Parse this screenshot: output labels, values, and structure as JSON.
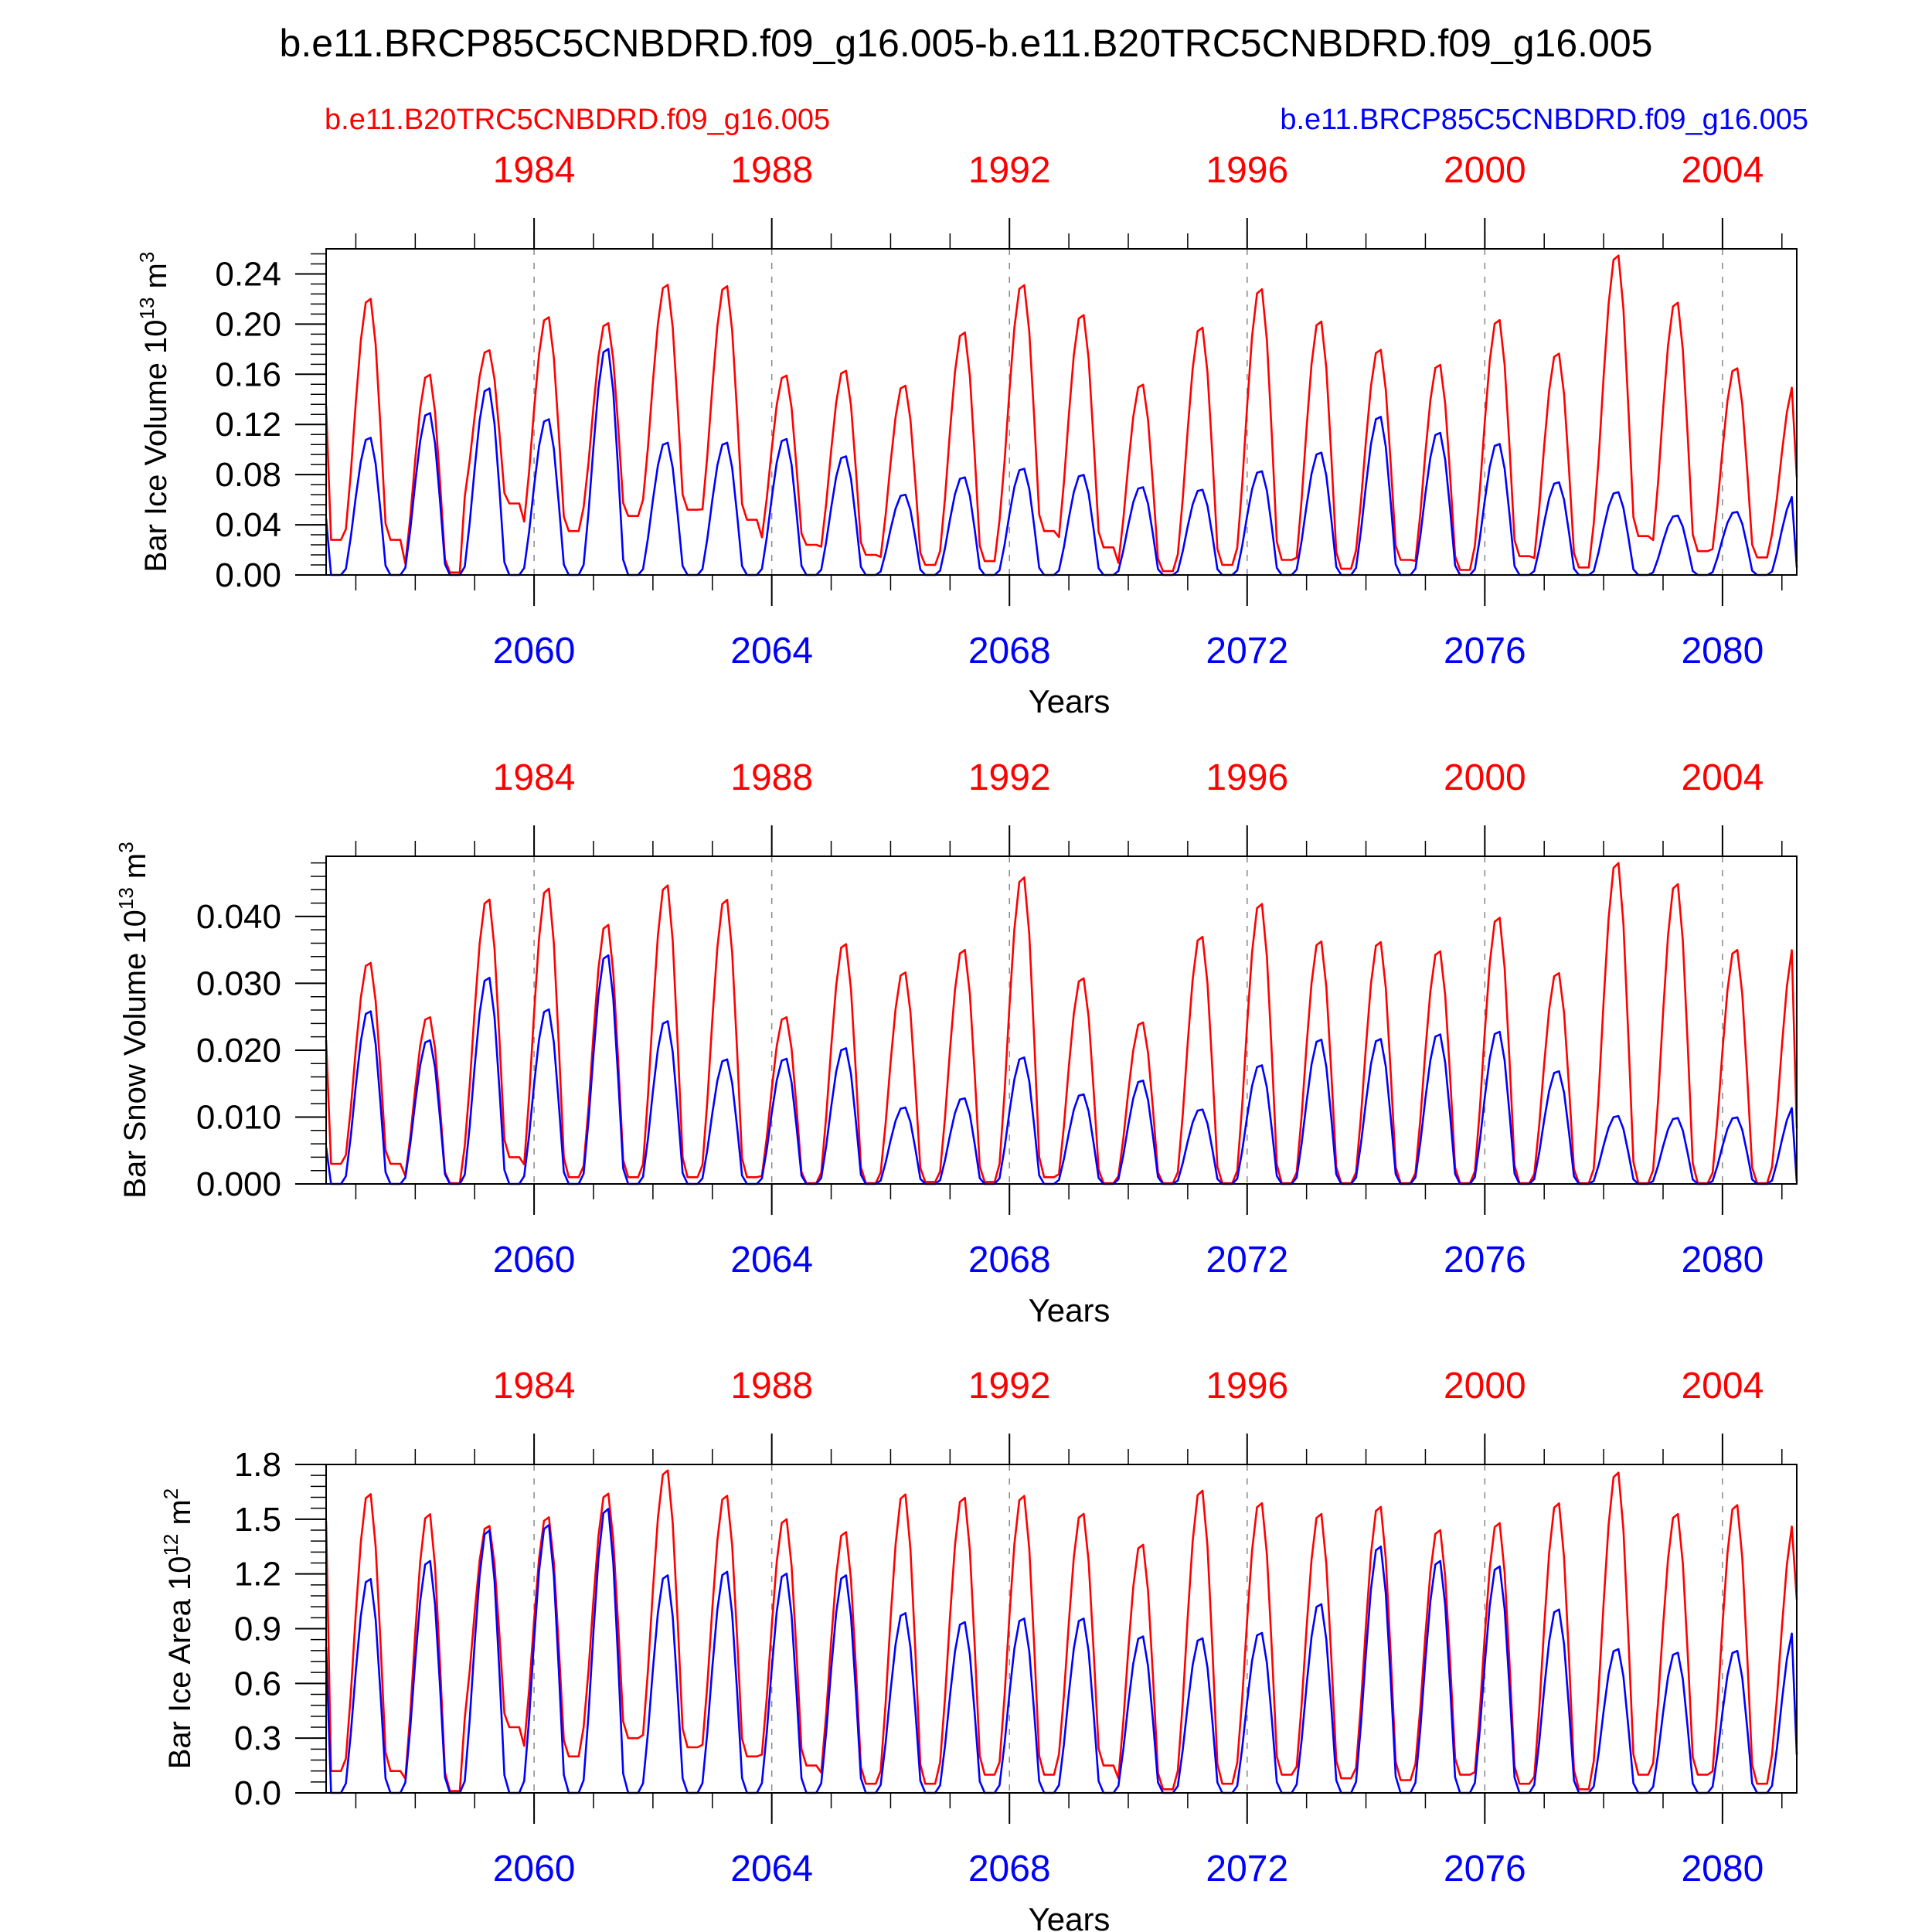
{
  "title": "b.e11.BRCP85C5CNBDRD.f09_g16.005-b.e11.B20TRC5CNBDRD.f09_g16.005",
  "legend": {
    "left": "b.e11.B20TRC5CNBDRD.f09_g16.005",
    "right": "b.e11.BRCP85C5CNBDRD.f09_g16.005",
    "left_color": "#ff0000",
    "right_color": "#0000ff"
  },
  "chart_data": [
    {
      "type": "line",
      "title": "",
      "ylabel": "Bar Ice Volume 10",
      "ylabel_exp": "13",
      "ylabel_unit": " m",
      "ylabel_unit_exp": "3",
      "xlabel": "Years",
      "top_axis_ticks": [
        "1984",
        "1988",
        "1992",
        "1996",
        "2000",
        "2004"
      ],
      "bottom_axis_ticks": [
        "2060",
        "2064",
        "2068",
        "2072",
        "2076",
        "2080"
      ],
      "ylim": [
        0,
        0.26
      ],
      "yticks": [
        0.0,
        0.04,
        0.08,
        0.12,
        0.16,
        0.2,
        0.24
      ],
      "ytick_labels": [
        "0.00",
        "0.04",
        "0.08",
        "0.12",
        "0.16",
        "0.20",
        "0.24"
      ],
      "series": [
        {
          "name": "b.e11.B20TRC5CNBDRD.f09_g16.005",
          "color": "#ff0000",
          "peaks": [
            0.223,
            0.162,
            0.181,
            0.208,
            0.203,
            0.234,
            0.233,
            0.161,
            0.165,
            0.153,
            0.196,
            0.234,
            0.21,
            0.154,
            0.2,
            0.231,
            0.205,
            0.182,
            0.17,
            0.206,
            0.179,
            0.258,
            0.22,
            0.167,
            0.153
          ],
          "troughs": [
            0.028,
            0.002,
            0.057,
            0.035,
            0.047,
            0.052,
            0.044,
            0.024,
            0.016,
            0.008,
            0.011,
            0.035,
            0.022,
            0.003,
            0.008,
            0.012,
            0.005,
            0.012,
            0.004,
            0.015,
            0.006,
            0.031,
            0.019,
            0.014,
            0.027
          ],
          "start": 0.135,
          "end": 0.078
        },
        {
          "name": "b.e11.BRCP85C5CNBDRD.f09_g16.005",
          "color": "#0000ff",
          "peaks": [
            0.111,
            0.131,
            0.151,
            0.126,
            0.183,
            0.107,
            0.107,
            0.11,
            0.096,
            0.065,
            0.079,
            0.086,
            0.081,
            0.071,
            0.069,
            0.084,
            0.099,
            0.128,
            0.115,
            0.106,
            0.075,
            0.067,
            0.048,
            0.051,
            0.064
          ],
          "troughs": [
            0.0,
            0.0,
            0.0,
            0.0,
            0.0,
            0.0,
            0.0,
            0.0,
            0.0,
            0.0,
            0.0,
            0.0,
            0.0,
            0.0,
            0.0,
            0.0,
            0.0,
            0.0,
            0.0,
            0.0,
            0.0,
            0.0,
            0.0,
            0.0,
            0.0
          ],
          "start": 0.045,
          "end": 0.006
        }
      ]
    },
    {
      "type": "line",
      "title": "",
      "ylabel": "Bar Snow Volume 10",
      "ylabel_exp": "13",
      "ylabel_unit": " m",
      "ylabel_unit_exp": "3",
      "xlabel": "Years",
      "top_axis_ticks": [
        "1984",
        "1988",
        "1992",
        "1996",
        "2000",
        "2004"
      ],
      "bottom_axis_ticks": [
        "2060",
        "2064",
        "2068",
        "2072",
        "2076",
        "2080"
      ],
      "ylim": [
        0,
        0.049
      ],
      "yticks": [
        0.0,
        0.01,
        0.02,
        0.03,
        0.04
      ],
      "ytick_labels": [
        "0.000",
        "0.010",
        "0.020",
        "0.030",
        "0.040"
      ],
      "series": [
        {
          "name": "b.e11.B20TRC5CNBDRD.f09_g16.005",
          "color": "#ff0000",
          "peaks": [
            0.0335,
            0.0253,
            0.0431,
            0.0448,
            0.0393,
            0.0453,
            0.0431,
            0.0253,
            0.0364,
            0.0321,
            0.0355,
            0.0465,
            0.0312,
            0.0245,
            0.0375,
            0.0425,
            0.0368,
            0.0367,
            0.0353,
            0.0404,
            0.032,
            0.0487,
            0.0455,
            0.0355,
            0.036
          ],
          "troughs": [
            0.003,
            0.0001,
            0.004,
            0.001,
            0.001,
            0.001,
            0.001,
            0.0001,
            0.0001,
            0.0003,
            0.0003,
            0.001,
            0.0001,
            0.0001,
            0.0001,
            0.0001,
            0.0001,
            0.0001,
            0.0001,
            0.0001,
            0.0001,
            0.0001,
            0.0001,
            0.0001,
            0.001
          ],
          "start": 0.0215,
          "end": 0.0083
        },
        {
          "name": "b.e11.BRCP85C5CNBDRD.f09_g16.005",
          "color": "#0000ff",
          "peaks": [
            0.0262,
            0.0218,
            0.0313,
            0.0265,
            0.0347,
            0.0247,
            0.0189,
            0.019,
            0.0206,
            0.0116,
            0.013,
            0.0192,
            0.0136,
            0.0157,
            0.0113,
            0.018,
            0.0219,
            0.022,
            0.0227,
            0.0231,
            0.0171,
            0.0103,
            0.01,
            0.0101,
            0.0117
          ],
          "troughs": [
            0.0,
            0.0,
            0.0,
            0.0,
            0.0,
            0.0,
            0.0,
            0.0,
            0.0,
            0.0,
            0.0,
            0.0,
            0.0,
            0.0,
            0.0,
            0.0,
            0.0,
            0.0,
            0.0,
            0.0,
            0.0,
            0.0,
            0.0,
            0.0,
            0.0
          ],
          "start": 0.0055,
          "end": 0.0003
        }
      ]
    },
    {
      "type": "line",
      "title": "",
      "ylabel": "Bar Ice Area 10",
      "ylabel_exp": "12",
      "ylabel_unit": " m",
      "ylabel_unit_exp": "2",
      "xlabel": "Years",
      "top_axis_ticks": [
        "1984",
        "1988",
        "1992",
        "1996",
        "2000",
        "2004"
      ],
      "bottom_axis_ticks": [
        "2060",
        "2064",
        "2068",
        "2072",
        "2076",
        "2080"
      ],
      "ylim": [
        0,
        1.8
      ],
      "yticks": [
        0.0,
        0.3,
        0.6,
        0.9,
        1.2,
        1.5,
        1.8
      ],
      "ytick_labels": [
        "0.0",
        "0.3",
        "0.6",
        "0.9",
        "1.2",
        "1.5",
        "1.8"
      ],
      "series": [
        {
          "name": "b.e11.B20TRC5CNBDRD.f09_g16.005",
          "color": "#ff0000",
          "peaks": [
            1.66,
            1.55,
            1.48,
            1.53,
            1.66,
            1.79,
            1.65,
            1.52,
            1.45,
            1.66,
            1.64,
            1.65,
            1.55,
            1.38,
            1.68,
            1.61,
            1.55,
            1.59,
            1.46,
            1.5,
            1.61,
            1.78,
            1.55,
            1.6,
            1.5
          ],
          "troughs": [
            0.12,
            0.01,
            0.36,
            0.2,
            0.3,
            0.25,
            0.2,
            0.15,
            0.05,
            0.05,
            0.1,
            0.1,
            0.15,
            0.02,
            0.05,
            0.1,
            0.08,
            0.07,
            0.1,
            0.05,
            0.02,
            0.1,
            0.1,
            0.05,
            0.15
          ],
          "start": 1.49,
          "end": 1.06
        },
        {
          "name": "b.e11.BRCP85C5CNBDRD.f09_g16.005",
          "color": "#0000ff",
          "peaks": [
            1.19,
            1.29,
            1.46,
            1.49,
            1.58,
            1.21,
            1.23,
            1.22,
            1.21,
            1.0,
            0.95,
            0.97,
            0.97,
            0.87,
            0.86,
            0.89,
            1.05,
            1.37,
            1.29,
            1.26,
            1.02,
            0.8,
            0.78,
            0.79,
            0.9
          ],
          "troughs": [
            0.0,
            0.0,
            0.0,
            0.0,
            0.0,
            0.0,
            0.0,
            0.0,
            0.0,
            0.0,
            0.0,
            0.0,
            0.0,
            0.0,
            0.0,
            0.0,
            0.0,
            0.0,
            0.0,
            0.0,
            0.0,
            0.0,
            0.0,
            0.0,
            0.0
          ],
          "start": 0.8,
          "end": 0.21
        }
      ]
    }
  ]
}
